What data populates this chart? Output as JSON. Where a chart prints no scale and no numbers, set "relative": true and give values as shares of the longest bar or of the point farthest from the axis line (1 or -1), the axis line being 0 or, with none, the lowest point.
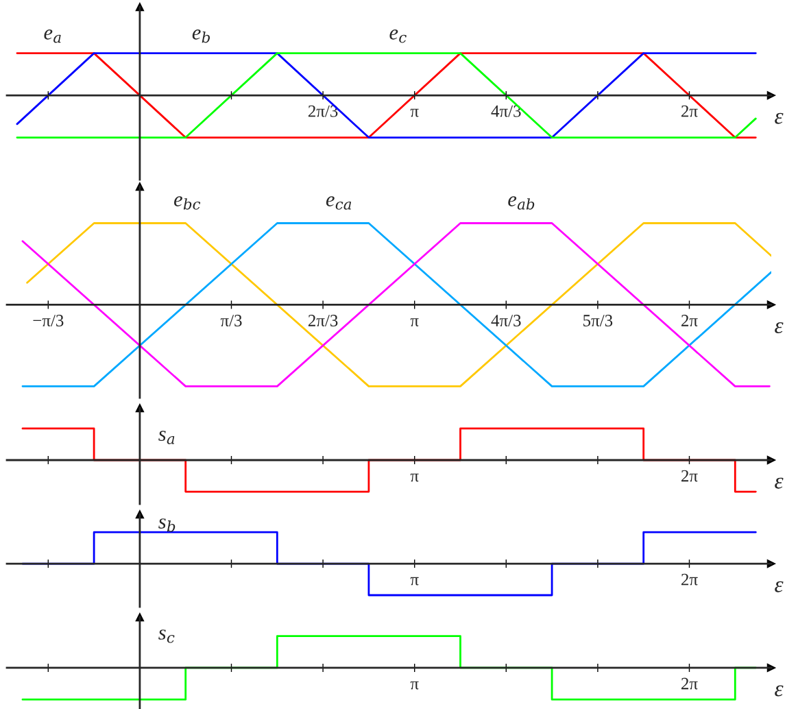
{
  "chart_data": [
    {
      "type": "line",
      "relative": true,
      "xlabel": "ε",
      "tick_labels": "x",
      "xlim": [
        -1.52,
        7.22
      ],
      "xticks": [
        {
          "value": -1.0472,
          "label": null
        },
        {
          "value": 1.0472,
          "label": null
        },
        {
          "value": 2.0944,
          "label": "2π/3"
        },
        {
          "value": 3.1416,
          "label": "π"
        },
        {
          "value": 4.1888,
          "label": "4π/3"
        },
        {
          "value": 5.236,
          "label": null
        },
        {
          "value": 6.2832,
          "label": "2π"
        }
      ],
      "series": [
        {
          "name": "e$_{a}$",
          "color": "#ff0000",
          "x": [
            -1.403,
            -0.5236,
            0.5236,
            2.618,
            3.6652,
            5.7596,
            6.8068,
            7.0424
          ],
          "values": [
            1,
            1,
            -1,
            -1,
            1,
            1,
            -1,
            -1
          ]
        },
        {
          "name": "e$_{b}$",
          "color": "#0000ff",
          "x": [
            -1.403,
            -0.5236,
            1.5708,
            2.618,
            4.7124,
            5.7596,
            7.0424
          ],
          "values": [
            -0.68,
            1,
            1,
            -1,
            -1,
            1,
            1
          ]
        },
        {
          "name": "e$_{c}$",
          "color": "#00ff00",
          "x": [
            -1.403,
            0.5236,
            1.5708,
            3.6652,
            4.7124,
            6.8068,
            7.0424
          ],
          "values": [
            -1,
            -1,
            1,
            1,
            -1,
            -1,
            -0.55
          ]
        }
      ]
    },
    {
      "type": "line",
      "relative": true,
      "xlabel": "ε",
      "tick_labels": "x",
      "xlim": [
        -1.52,
        7.22
      ],
      "xticks": [
        {
          "value": -1.0472,
          "label": "−π/3"
        },
        {
          "value": 1.0472,
          "label": "π/3"
        },
        {
          "value": 2.0944,
          "label": "2π/3"
        },
        {
          "value": 3.1416,
          "label": "π"
        },
        {
          "value": 4.1888,
          "label": "4π/3"
        },
        {
          "value": 5.236,
          "label": "5π/3"
        },
        {
          "value": 6.2832,
          "label": "2π"
        }
      ],
      "series": [
        {
          "name": "e$_{bc}$",
          "color": "#ffc800",
          "x": [
            -1.288,
            -0.5236,
            0.5236,
            2.618,
            3.6652,
            5.7596,
            6.8068,
            7.22
          ],
          "values": [
            0.27,
            1,
            1,
            -1,
            -1,
            1,
            1,
            0.6
          ]
        },
        {
          "name": "e$_{ca}$",
          "color": "#00a8ff",
          "x": [
            -1.34,
            -0.5236,
            1.5708,
            2.618,
            4.7124,
            5.7596,
            7.22
          ],
          "values": [
            -1,
            -1,
            1,
            1,
            -1,
            -1,
            0.4
          ]
        },
        {
          "name": "e$_{ab}$",
          "color": "#ff00ff",
          "x": [
            -1.34,
            0.5236,
            1.5708,
            3.6652,
            4.7124,
            6.8068,
            7.2
          ],
          "values": [
            0.78,
            -1,
            -1,
            1,
            1,
            -1,
            -1
          ]
        }
      ]
    },
    {
      "type": "step",
      "relative": true,
      "xlabel": "ε",
      "tick_labels": "x",
      "xlim": [
        -1.52,
        7.22
      ],
      "xticks": [
        {
          "value": -1.0472,
          "label": null
        },
        {
          "value": 1.0472,
          "label": null
        },
        {
          "value": 2.0944,
          "label": null
        },
        {
          "value": 3.1416,
          "label": "π"
        },
        {
          "value": 4.1888,
          "label": null
        },
        {
          "value": 5.236,
          "label": null
        },
        {
          "value": 6.2832,
          "label": "2π"
        }
      ],
      "series": [
        {
          "name": "s$_{a}$",
          "color": "#ff0000",
          "x": [
            -1.34,
            -0.5236,
            0.5236,
            2.618,
            3.6652,
            5.7596,
            6.8068,
            7.0424
          ],
          "values": [
            1,
            0,
            -1,
            0,
            1,
            0,
            -1,
            -1
          ]
        }
      ]
    },
    {
      "type": "step",
      "relative": true,
      "xlabel": "ε",
      "tick_labels": "x",
      "xlim": [
        -1.52,
        7.22
      ],
      "xticks": [
        {
          "value": -1.0472,
          "label": null
        },
        {
          "value": 1.0472,
          "label": null
        },
        {
          "value": 2.0944,
          "label": null
        },
        {
          "value": 3.1416,
          "label": "π"
        },
        {
          "value": 4.1888,
          "label": null
        },
        {
          "value": 5.236,
          "label": null
        },
        {
          "value": 6.2832,
          "label": "2π"
        }
      ],
      "series": [
        {
          "name": "s$_{b}$",
          "color": "#0000ff",
          "x": [
            -1.34,
            -0.5236,
            1.5708,
            2.618,
            4.7124,
            5.7596,
            7.0424
          ],
          "values": [
            0,
            1,
            0,
            -1,
            0,
            1,
            1
          ]
        }
      ]
    },
    {
      "type": "step",
      "relative": true,
      "xlabel": "ε",
      "tick_labels": "x",
      "xlim": [
        -1.52,
        7.22
      ],
      "xticks": [
        {
          "value": -1.0472,
          "label": null
        },
        {
          "value": 1.0472,
          "label": null
        },
        {
          "value": 2.0944,
          "label": null
        },
        {
          "value": 3.1416,
          "label": "π"
        },
        {
          "value": 4.1888,
          "label": null
        },
        {
          "value": 5.236,
          "label": null
        },
        {
          "value": 6.2832,
          "label": "2π"
        }
      ],
      "series": [
        {
          "name": "s$_{c}$",
          "color": "#00ff00",
          "x": [
            -1.34,
            0.5236,
            1.5708,
            3.6652,
            4.7124,
            6.8068,
            7.0424
          ],
          "values": [
            -1,
            0,
            1,
            0,
            -1,
            0,
            0
          ]
        }
      ]
    }
  ]
}
